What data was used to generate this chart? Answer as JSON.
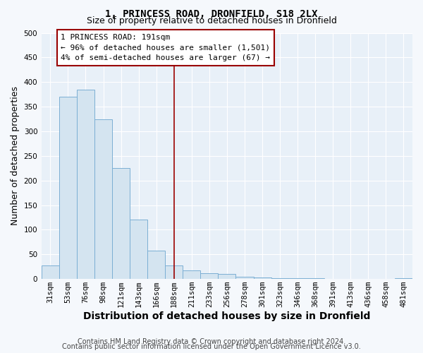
{
  "title": "1, PRINCESS ROAD, DRONFIELD, S18 2LX",
  "subtitle": "Size of property relative to detached houses in Dronfield",
  "xlabel": "Distribution of detached houses by size in Dronfield",
  "ylabel": "Number of detached properties",
  "bar_labels": [
    "31sqm",
    "53sqm",
    "76sqm",
    "98sqm",
    "121sqm",
    "143sqm",
    "166sqm",
    "188sqm",
    "211sqm",
    "233sqm",
    "256sqm",
    "278sqm",
    "301sqm",
    "323sqm",
    "346sqm",
    "368sqm",
    "391sqm",
    "413sqm",
    "436sqm",
    "458sqm",
    "481sqm"
  ],
  "bar_values": [
    28,
    370,
    385,
    325,
    225,
    120,
    58,
    28,
    18,
    12,
    10,
    5,
    3,
    2,
    1,
    1,
    0,
    0,
    0,
    0,
    2
  ],
  "bar_color": "#d4e4f0",
  "bar_edge_color": "#7bafd4",
  "ylim": [
    0,
    500
  ],
  "yticks": [
    0,
    50,
    100,
    150,
    200,
    250,
    300,
    350,
    400,
    450,
    500
  ],
  "vline_x_idx": 7,
  "vline_color": "#990000",
  "annotation_title": "1 PRINCESS ROAD: 191sqm",
  "annotation_line1": "← 96% of detached houses are smaller (1,501)",
  "annotation_line2": "4% of semi-detached houses are larger (67) →",
  "annotation_box_facecolor": "#ffffff",
  "annotation_box_edgecolor": "#990000",
  "footer1": "Contains HM Land Registry data © Crown copyright and database right 2024.",
  "footer2": "Contains public sector information licensed under the Open Government Licence v3.0.",
  "plot_bg_color": "#e8f0f8",
  "fig_bg_color": "#f5f8fc",
  "grid_color": "#ffffff",
  "title_fontsize": 10,
  "subtitle_fontsize": 9,
  "axis_label_fontsize": 9,
  "tick_fontsize": 7.5,
  "annotation_fontsize": 8,
  "footer_fontsize": 7
}
